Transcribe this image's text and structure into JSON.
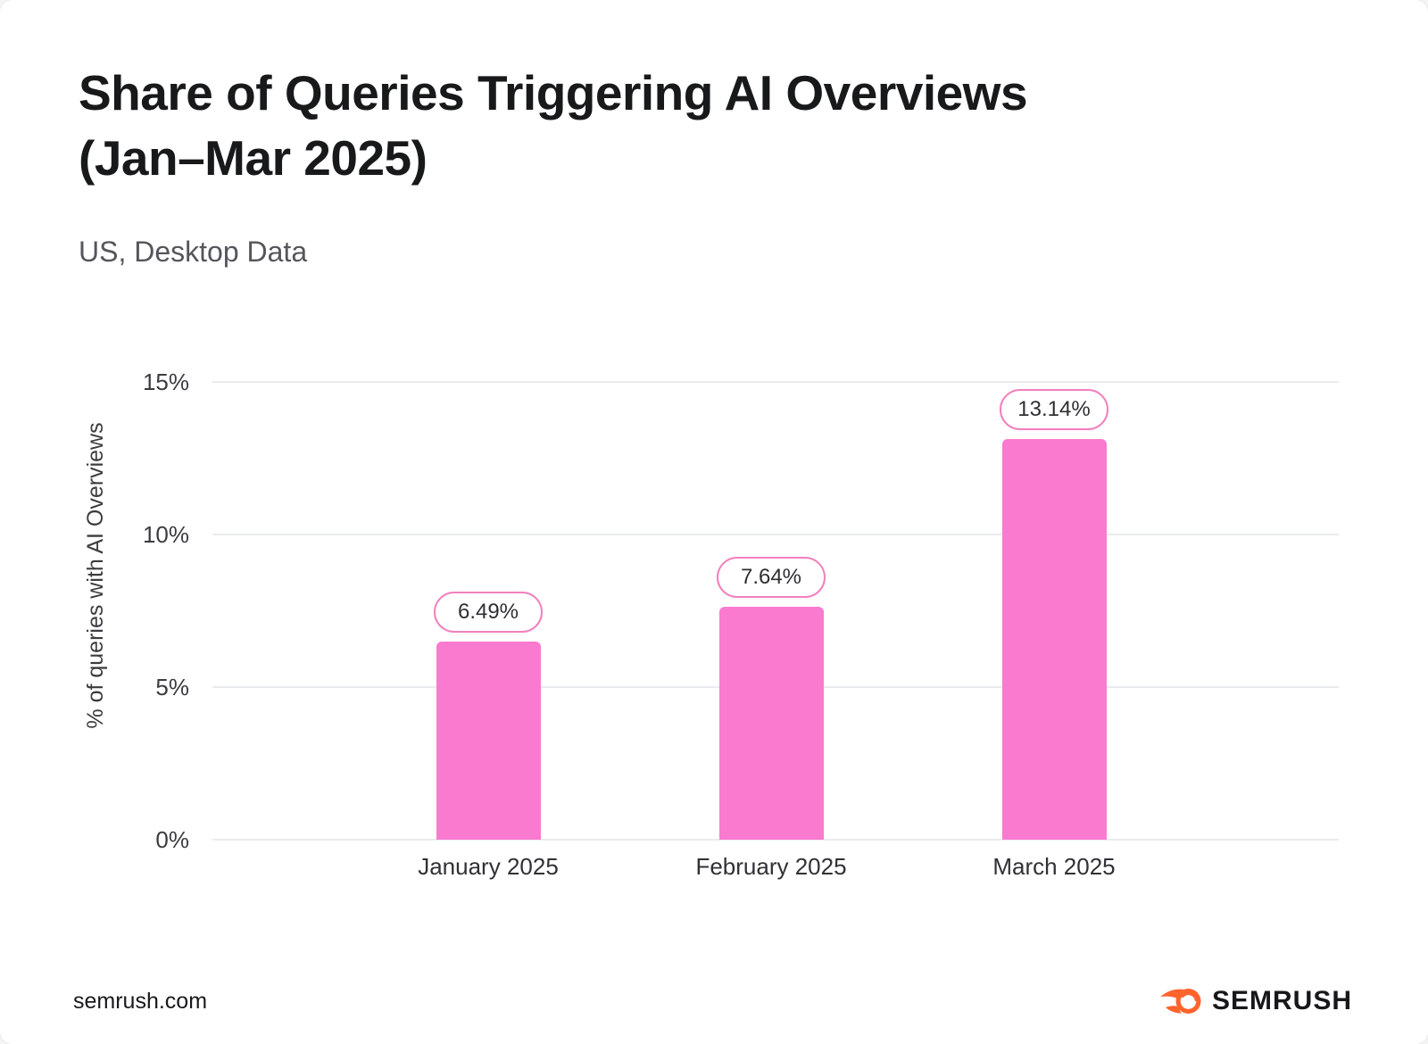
{
  "header": {
    "title": "Share of Queries Triggering AI Overviews\n(Jan–Mar 2025)",
    "subtitle": "US, Desktop Data"
  },
  "chart_data": {
    "type": "bar",
    "title": "Share of Queries Triggering AI Overviews (Jan–Mar 2025)",
    "subtitle": "US, Desktop Data",
    "categories": [
      "January 2025",
      "February 2025",
      "March 2025"
    ],
    "values": [
      6.49,
      7.64,
      13.14
    ],
    "value_labels": [
      "6.49%",
      "7.64%",
      "13.14%"
    ],
    "xlabel": "",
    "ylabel": "% of queries with AI Overviews",
    "ylim": [
      0,
      15
    ],
    "yticks": [
      0,
      5,
      10,
      15
    ],
    "ytick_labels": [
      "0%",
      "5%",
      "10%",
      "15%"
    ],
    "grid": "horizontal",
    "legend": "none",
    "bar_color": "#fa7ad0",
    "bubble_border_color": "#f180be",
    "gridline_color": "#e9ebee"
  },
  "footer": {
    "site": "semrush.com",
    "logo_text": "SEMRUSH",
    "logo_icon": "semrush-flame-icon",
    "logo_color": "#ff642d"
  }
}
